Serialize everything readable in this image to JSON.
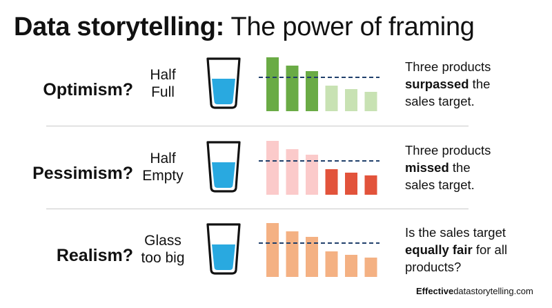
{
  "title": {
    "bold": "Data storytelling:",
    "regular": " The power of framing"
  },
  "rows": [
    {
      "label": "Optimism?",
      "sub": [
        "Half",
        "Full"
      ],
      "caption": {
        "line1": "Three products",
        "line2_bold": "surpassed",
        "line2_rest": " the",
        "line3": "sales target."
      },
      "chart_data": {
        "type": "bar",
        "values": [
          78,
          66,
          58,
          37,
          32,
          28
        ],
        "target": 49,
        "ylim": [
          0,
          80
        ],
        "colors": [
          "#6aab45",
          "#6aab45",
          "#6aab45",
          "#c8e2b3",
          "#c8e2b3",
          "#c8e2b3"
        ],
        "target_line_color": "#1f3f6b"
      }
    },
    {
      "label": "Pessimism?",
      "sub": [
        "Half",
        "Empty"
      ],
      "caption": {
        "line1": "Three products",
        "line2_bold": "missed",
        "line2_rest": " the",
        "line3": "sales target."
      },
      "chart_data": {
        "type": "bar",
        "values": [
          78,
          66,
          58,
          37,
          32,
          28
        ],
        "target": 49,
        "ylim": [
          0,
          80
        ],
        "colors": [
          "#fbcaca",
          "#fbcaca",
          "#fbcaca",
          "#e2533b",
          "#e2533b",
          "#e2533b"
        ],
        "target_line_color": "#1f3f6b"
      }
    },
    {
      "label": "Realism?",
      "sub": [
        "Glass",
        "too big"
      ],
      "caption": {
        "line1": "Is the sales target",
        "line2_bold": "equally fair",
        "line2_rest": " for all",
        "line3": "products?"
      },
      "chart_data": {
        "type": "bar",
        "values": [
          78,
          66,
          58,
          37,
          32,
          28
        ],
        "target": 49,
        "ylim": [
          0,
          80
        ],
        "colors": [
          "#f4b183",
          "#f4b183",
          "#f4b183",
          "#f4b183",
          "#f4b183",
          "#f4b183"
        ],
        "target_line_color": "#1f3f6b"
      }
    }
  ],
  "glass": {
    "water_color": "#29a9e0",
    "outline_color": "#111111"
  },
  "footer": {
    "bold": "Effective",
    "regular": "datastorytelling.com"
  }
}
